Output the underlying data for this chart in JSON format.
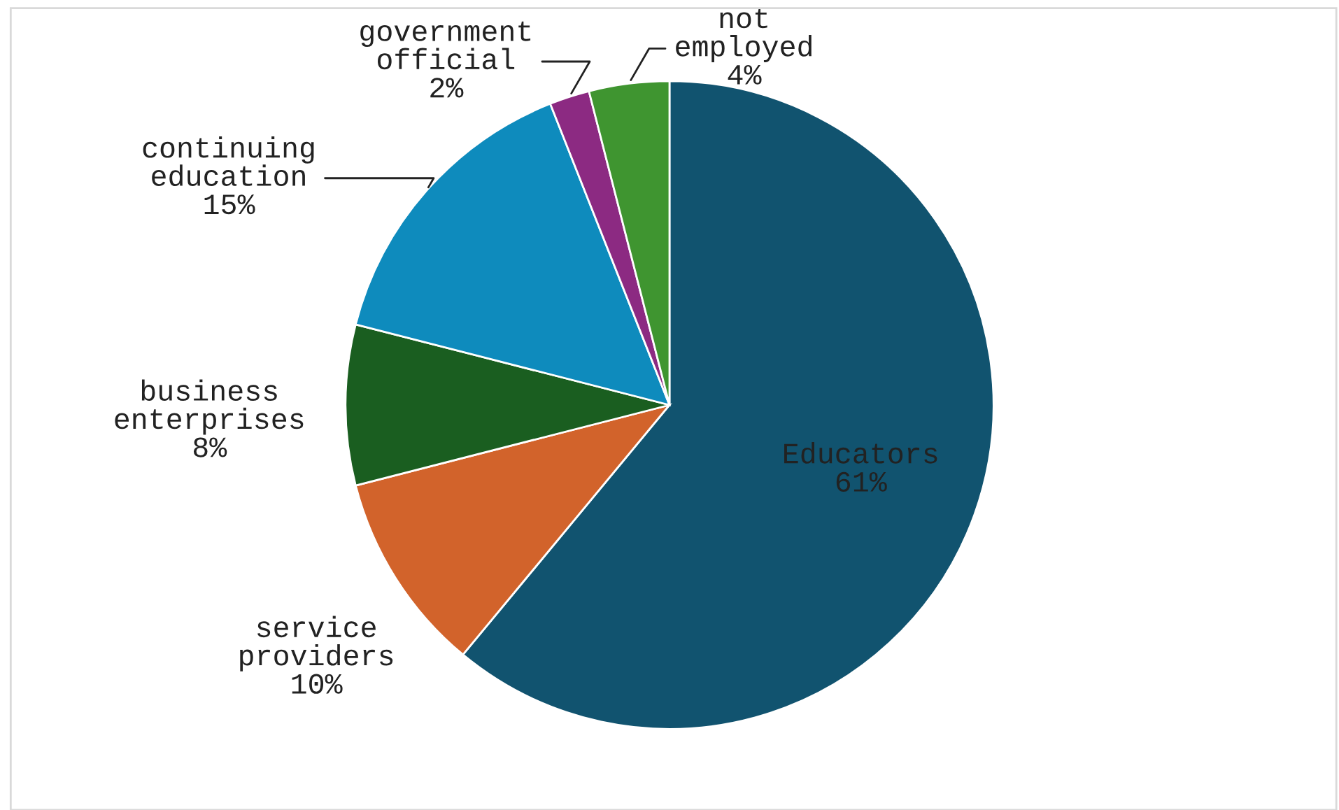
{
  "chart_data": {
    "type": "pie",
    "categories": [
      "Educators",
      "service providers",
      "business enterprises",
      "continuing education",
      "government official",
      "not employed"
    ],
    "values": [
      61,
      10,
      8,
      15,
      2,
      4
    ],
    "value_labels": [
      "61%",
      "10%",
      "8%",
      "15%",
      "2%",
      "4%"
    ],
    "colors": [
      "#11536f",
      "#d2632b",
      "#1a5e20",
      "#0e8bbd",
      "#8c2a82",
      "#3f9530"
    ]
  }
}
